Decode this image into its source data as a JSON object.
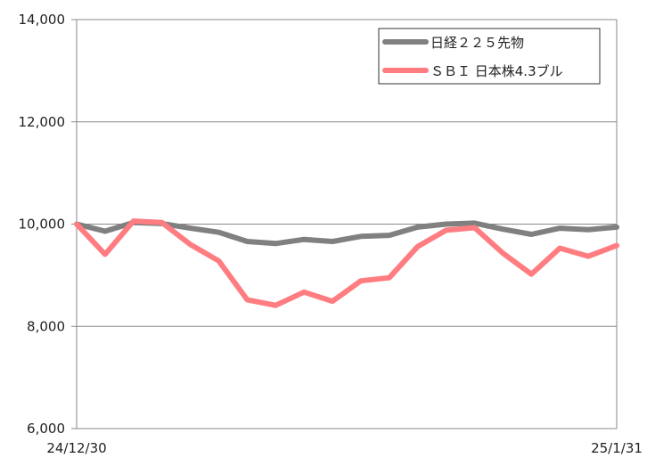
{
  "chart_data": {
    "type": "line",
    "x_labels": [
      "24/12/30",
      "25/1/31"
    ],
    "ylim": [
      6000,
      14000
    ],
    "yticks": [
      6000,
      8000,
      10000,
      12000,
      14000
    ],
    "ytick_labels": [
      "6,000",
      "8,000",
      "10,000",
      "12,000",
      "14,000"
    ],
    "grid": true,
    "legend_position": "top-right",
    "series": [
      {
        "name": "日経２２５先物",
        "color": "#808080",
        "values": [
          10000,
          9860,
          10030,
          10010,
          9920,
          9840,
          9660,
          9620,
          9700,
          9660,
          9760,
          9780,
          9940,
          10000,
          10020,
          9900,
          9800,
          9920,
          9890,
          9940
        ]
      },
      {
        "name": "ＳＢＩ 日本株4.3ブル",
        "color": "#ff7c80",
        "values": [
          10000,
          9410,
          10060,
          10030,
          9600,
          9280,
          8520,
          8410,
          8670,
          8490,
          8890,
          8950,
          9560,
          9880,
          9930,
          9430,
          9020,
          9530,
          9370,
          9580
        ]
      }
    ]
  }
}
